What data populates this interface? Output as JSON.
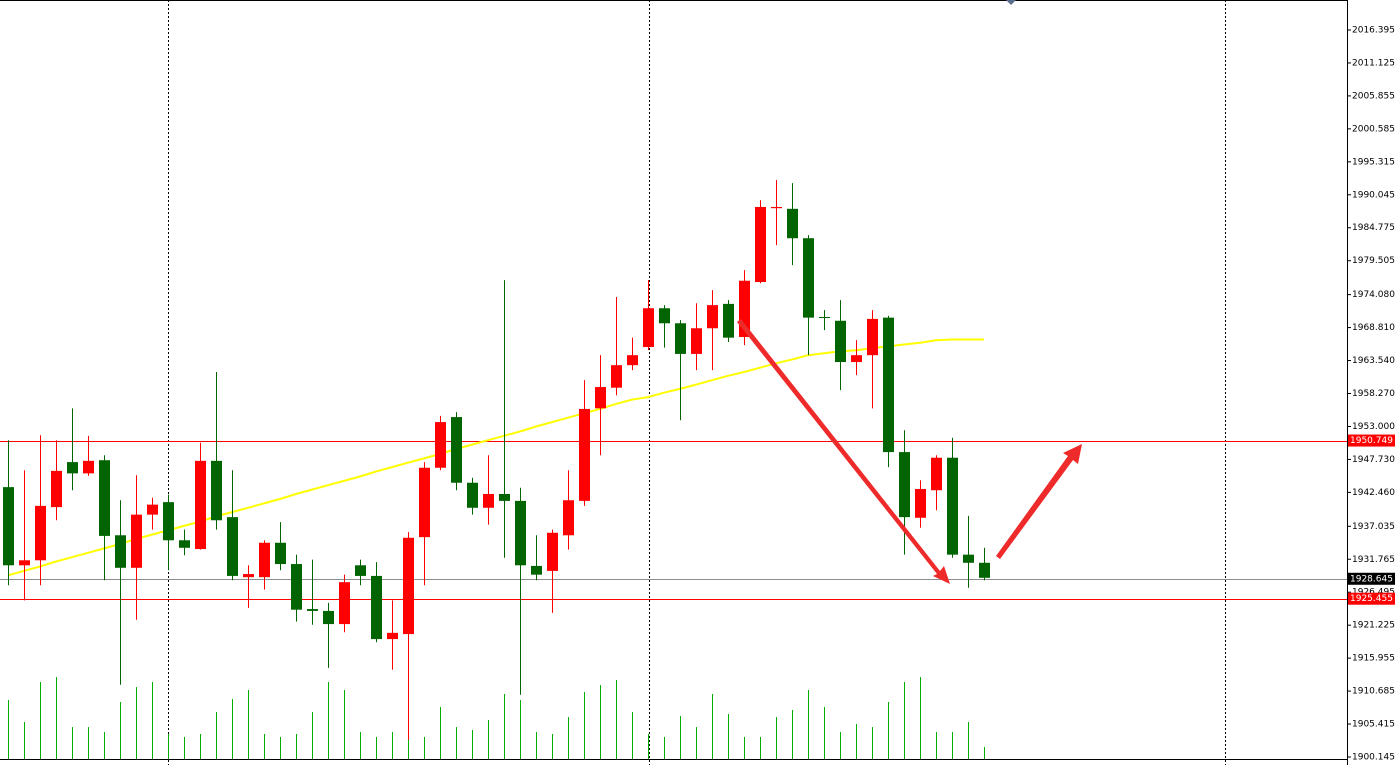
{
  "chart_data": {
    "type": "candlestick",
    "up_color": "#ff0000",
    "down_color": "#006400",
    "open": [
      1943.3,
      1930.8,
      1931.6,
      1940.1,
      1947.3,
      1945.5,
      1947.6,
      1935.6,
      1930.4,
      1938.9,
      1940.9,
      1934.8,
      1933.4,
      1947.5,
      1938.5,
      1928.9,
      1928.9,
      1934.4,
      1931.0,
      1923.8,
      1923.5,
      1921.4,
      1930.8,
      1929.1,
      1919.0,
      1919.8,
      1935.3,
      1946.4,
      1954.5,
      1944.0,
      1940.0,
      1942.2,
      1941.1,
      1930.7,
      1929.9,
      1935.6,
      1941.1,
      1955.9,
      1959.2,
      1962.8,
      1965.7,
      1971.9,
      1969.5,
      1964.6,
      1968.7,
      1972.6,
      1967.3,
      1976.1,
      1987.9,
      1987.8,
      1983.1,
      1970.5,
      1969.9,
      1963.3,
      1964.4,
      1970.4,
      1948.9,
      1938.4,
      1942.8,
      1948.0,
      1932.5,
      1931.2
    ],
    "high": [
      1950.8,
      1946.0,
      1951.6,
      1950.8,
      1955.9,
      1951.5,
      1948.4,
      1941.2,
      1945.2,
      1941.6,
      1942.1,
      1936.5,
      1950.4,
      1961.7,
      1946.0,
      1930.8,
      1934.8,
      1937.7,
      1932.5,
      1931.7,
      1924.8,
      1929.3,
      1931.7,
      1931.3,
      1925.2,
      1936.1,
      1947.3,
      1954.7,
      1955.3,
      1944.8,
      1948.4,
      1976.4,
      1943.2,
      1935.6,
      1936.5,
      1946.0,
      1960.4,
      1964.4,
      1973.7,
      1967.2,
      1976.4,
      1972.4,
      1970.0,
      1972.7,
      1974.8,
      1973.2,
      1978.0,
      1989.2,
      1992.4,
      1991.9,
      1983.6,
      1971.6,
      1973.2,
      1966.8,
      1971.6,
      1970.7,
      1952.4,
      1944.4,
      1948.4,
      1951.2,
      1938.7,
      1933.6
    ],
    "low": [
      1927.6,
      1925.2,
      1927.6,
      1938.0,
      1942.8,
      1945.1,
      1928.4,
      1911.7,
      1922.1,
      1936.5,
      1930.0,
      1932.4,
      1933.3,
      1936.5,
      1928.4,
      1924.0,
      1926.9,
      1930.0,
      1921.8,
      1921.3,
      1914.4,
      1920.1,
      1927.6,
      1918.5,
      1914.1,
      1902.9,
      1927.6,
      1946.0,
      1942.8,
      1938.9,
      1937.3,
      1932.0,
      1910.1,
      1928.4,
      1923.2,
      1933.3,
      1940.3,
      1948.4,
      1958.0,
      1962.0,
      1965.2,
      1965.6,
      1954.0,
      1962.0,
      1962.0,
      1966.5,
      1966.0,
      1975.9,
      1982.0,
      1978.8,
      1964.4,
      1968.4,
      1958.8,
      1961.2,
      1955.9,
      1946.5,
      1932.5,
      1936.8,
      1939.6,
      1932.0,
      1927.2,
      1928.4
    ],
    "close": [
      1930.8,
      1931.6,
      1940.3,
      1945.9,
      1945.5,
      1947.5,
      1935.5,
      1930.4,
      1938.9,
      1940.5,
      1934.8,
      1933.6,
      1947.5,
      1938.0,
      1929.1,
      1929.4,
      1934.4,
      1931.0,
      1923.7,
      1923.5,
      1921.4,
      1928.1,
      1929.1,
      1919.0,
      1920.0,
      1935.2,
      1946.4,
      1953.7,
      1944.0,
      1940.0,
      1942.2,
      1941.1,
      1930.8,
      1929.3,
      1936.0,
      1941.2,
      1955.8,
      1959.3,
      1962.8,
      1964.4,
      1971.9,
      1969.5,
      1964.6,
      1968.7,
      1972.4,
      1967.2,
      1976.3,
      1988.1,
      1988.1,
      1983.1,
      1970.4,
      1970.4,
      1963.3,
      1964.4,
      1970.2,
      1948.9,
      1938.5,
      1943.0,
      1948.0,
      1932.5,
      1931.2,
      1928.8
    ],
    "ma": {
      "color": "#ffff00",
      "values": [
        1929.2,
        1929.9,
        1930.6,
        1931.4,
        1932.1,
        1932.8,
        1933.5,
        1934.2,
        1935.0,
        1935.7,
        1936.4,
        1937.1,
        1937.8,
        1938.6,
        1939.3,
        1940.0,
        1940.7,
        1941.4,
        1942.2,
        1942.9,
        1943.6,
        1944.3,
        1945.0,
        1945.8,
        1946.5,
        1947.2,
        1947.9,
        1948.6,
        1949.4,
        1950.1,
        1950.8,
        1951.5,
        1952.2,
        1953.0,
        1953.7,
        1954.4,
        1955.1,
        1955.8,
        1956.6,
        1957.3,
        1957.7,
        1958.4,
        1959.0,
        1959.7,
        1960.4,
        1961.1,
        1961.7,
        1962.4,
        1963.1,
        1963.7,
        1964.4,
        1964.7,
        1965.0,
        1965.2,
        1965.5,
        1965.8,
        1966.1,
        1966.4,
        1966.8,
        1966.9,
        1966.9,
        1966.9
      ]
    },
    "volume": {
      "color": "#00b000",
      "values": [
        59,
        37,
        77,
        82,
        32,
        32,
        27,
        57,
        72,
        77,
        25,
        22,
        25,
        47,
        60,
        69,
        25,
        22,
        25,
        47,
        77,
        69,
        27,
        22,
        27,
        77,
        22,
        52,
        32,
        29,
        39,
        65,
        59,
        27,
        25,
        42,
        67,
        74,
        79,
        47,
        25,
        22,
        43,
        32,
        65,
        45,
        22,
        22,
        42,
        49,
        69,
        52,
        27,
        35,
        32,
        57,
        77,
        82,
        27,
        27,
        37,
        12
      ]
    },
    "hlines": [
      {
        "value": 1950.749,
        "color": "#ff0000"
      },
      {
        "value": 1928.645,
        "color": "#000000"
      },
      {
        "value": 1925.455,
        "color": "#ff0000"
      }
    ],
    "ylim": [
      1898.866,
      2021.192
    ],
    "yticks": [
      2016.395,
      2011.125,
      2005.855,
      2000.585,
      1995.315,
      1990.045,
      1984.775,
      1979.505,
      {
        "value": 1974.08,
        "label": "1974.080"
      },
      {
        "value": 1968.81,
        "label": "1968.810"
      },
      {
        "value": 1963.54,
        "label": "1963.540"
      },
      {
        "value": 1958.27,
        "label": "1958.270"
      },
      {
        "value": 1953.0,
        "label": "1953.000"
      },
      {
        "value": 1947.73,
        "label": "1947.730"
      },
      {
        "value": 1942.46,
        "label": "1942.460"
      },
      1937.035,
      1931.765,
      1926.495,
      1921.225,
      1915.955,
      1910.685,
      1905.415,
      1900.145
    ]
  }
}
